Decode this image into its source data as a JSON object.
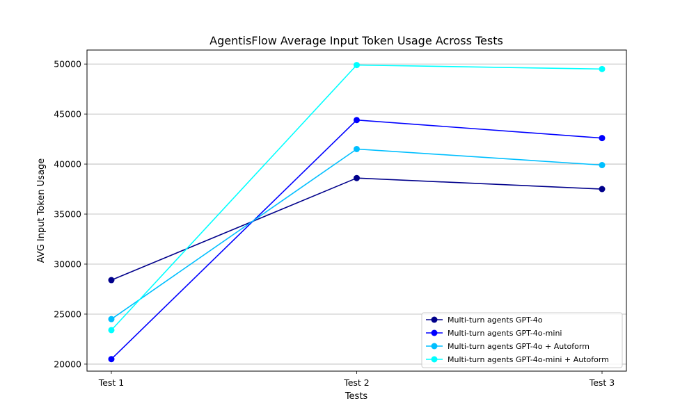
{
  "chart_data": {
    "type": "line",
    "title": "AgentisFlow Average Input Token Usage Across Tests",
    "xlabel": "Tests",
    "ylabel": "AVG Input Token Usage",
    "categories": [
      "Test 1",
      "Test 2",
      "Test 3"
    ],
    "ylim": [
      19300,
      51400
    ],
    "yticks": [
      20000,
      25000,
      30000,
      35000,
      40000,
      45000,
      50000
    ],
    "grid": "horizontal",
    "legend_position": "lower-right",
    "series": [
      {
        "name": "Multi-turn agents GPT-4o",
        "color": "#00008b",
        "values": [
          28400,
          38600,
          37500
        ]
      },
      {
        "name": "Multi-turn agents GPT-4o-mini",
        "color": "#0000ff",
        "values": [
          20500,
          44400,
          42600
        ]
      },
      {
        "name": "Multi-turn agents GPT-4o + Autoform",
        "color": "#00bfff",
        "values": [
          24500,
          41500,
          39900
        ]
      },
      {
        "name": "Multi-turn agents GPT-4o-mini + Autoform",
        "color": "#00ffff",
        "values": [
          23400,
          49900,
          49500
        ]
      }
    ]
  }
}
